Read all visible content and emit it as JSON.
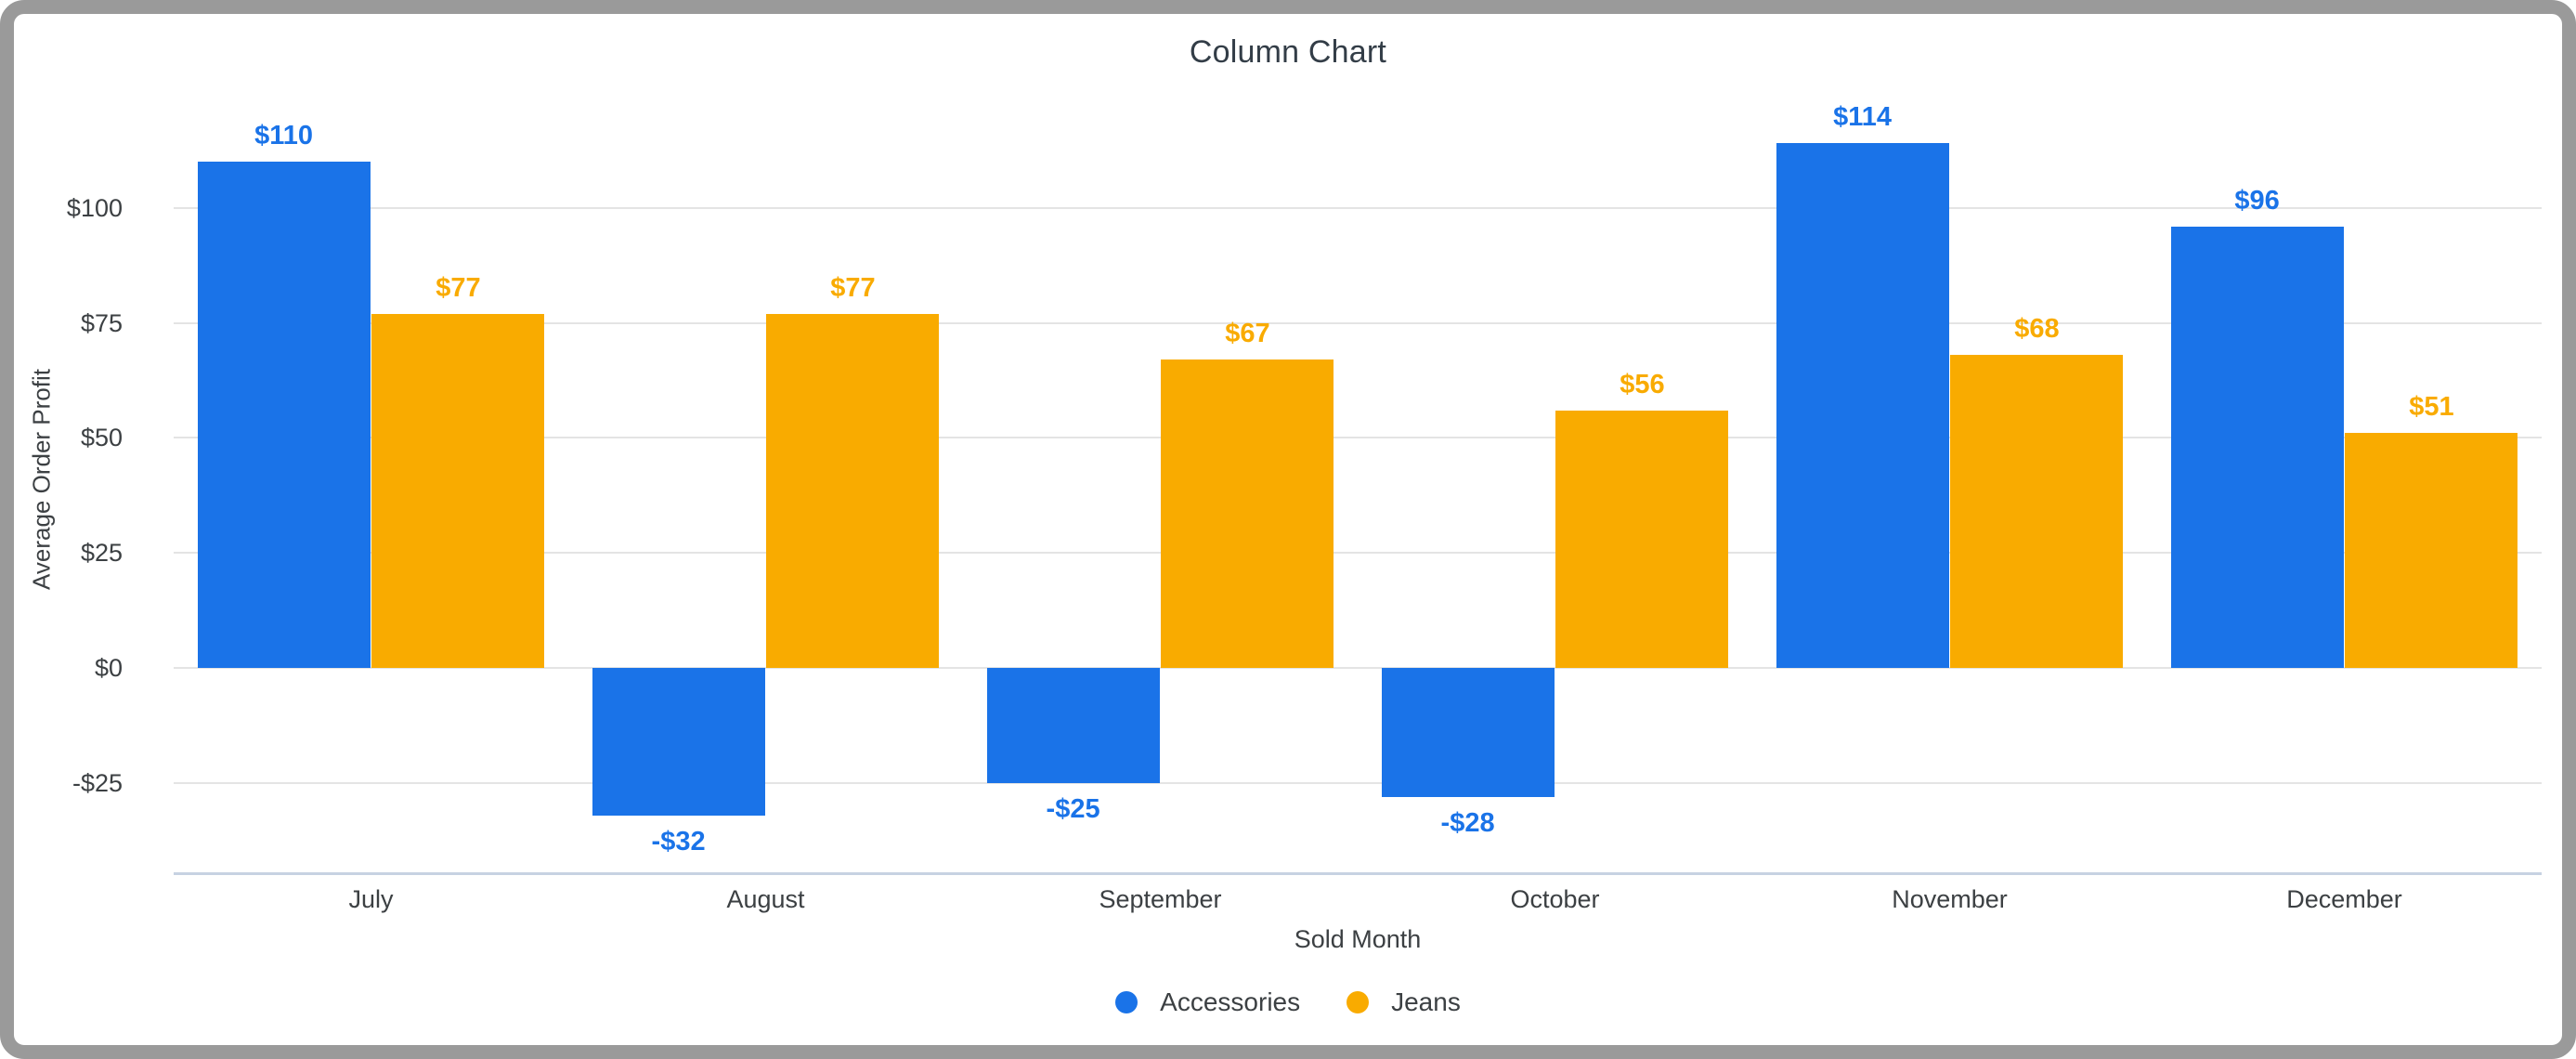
{
  "title": "Column Chart",
  "chart_data": {
    "type": "bar",
    "title": "Column Chart",
    "xlabel": "Sold Month",
    "ylabel": "Average Order Profit",
    "categories": [
      "July",
      "August",
      "September",
      "October",
      "November",
      "December"
    ],
    "series": [
      {
        "name": "Accessories",
        "color": "#1a73e8",
        "values": [
          110,
          -32,
          -25,
          -28,
          114,
          96
        ],
        "labels": [
          "$110",
          "-$32",
          "-$25",
          "-$28",
          "$114",
          "$96"
        ]
      },
      {
        "name": "Jeans",
        "color": "#f9ab00",
        "values": [
          77,
          77,
          67,
          56,
          68,
          51
        ],
        "labels": [
          "$77",
          "$77",
          "$67",
          "$56",
          "$68",
          "$51"
        ]
      }
    ],
    "yticks": [
      {
        "value": 100,
        "label": "$100"
      },
      {
        "value": 75,
        "label": "$75"
      },
      {
        "value": 50,
        "label": "$50"
      },
      {
        "value": 25,
        "label": "$25"
      },
      {
        "value": 0,
        "label": "$0"
      },
      {
        "value": -25,
        "label": "-$25"
      }
    ],
    "ylim": [
      -45,
      127
    ],
    "grid": true,
    "legend_position": "bottom"
  },
  "colors": {
    "accessories": "#1a73e8",
    "jeans": "#f9ab00",
    "gridline": "#e4e4e4",
    "axis_line": "#c7d2e2",
    "text_dark": "#3c4043",
    "frame_border": "#9a9a9a",
    "background": "#ffffff"
  }
}
